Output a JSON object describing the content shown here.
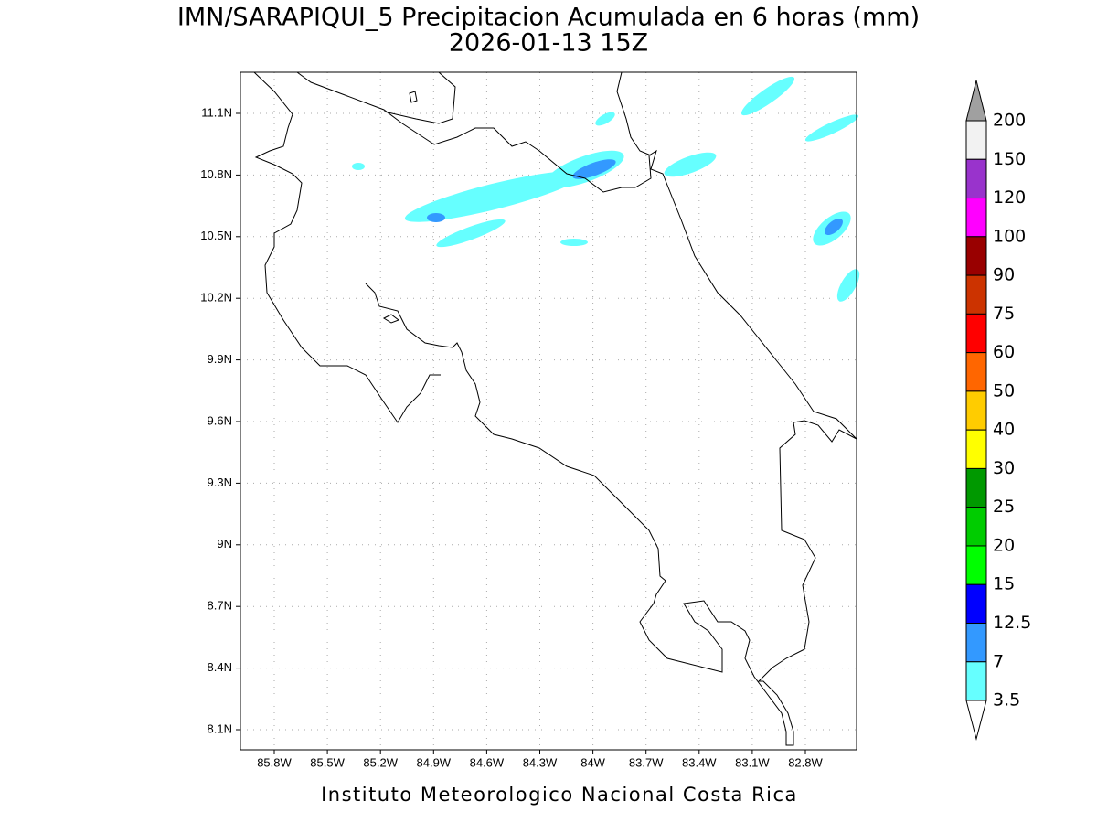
{
  "header": {
    "title": "IMN/SARAPIQUI_5 Precipitacion Acumulada en 6 horas (mm)",
    "subtitle": "2026-01-13 15Z"
  },
  "map": {
    "lat_ticks": [
      "11.1N",
      "10.8N",
      "10.5N",
      "10.2N",
      "9.9N",
      "9.6N",
      "9.3N",
      "9N",
      "8.7N",
      "8.4N",
      "8.1N"
    ],
    "lon_ticks": [
      "85.8W",
      "85.5W",
      "85.2W",
      "84.9W",
      "84.6W",
      "84.3W",
      "84W",
      "83.7W",
      "83.4W",
      "83.1W",
      "82.8W"
    ]
  },
  "colorbar": {
    "labels": [
      "200",
      "150",
      "120",
      "100",
      "90",
      "75",
      "60",
      "50",
      "40",
      "30",
      "25",
      "20",
      "15",
      "12.5",
      "7",
      "3.5"
    ],
    "colors": [
      "#f2f2f2",
      "#9933cc",
      "#ff00ff",
      "#990000",
      "#cc3300",
      "#ff0000",
      "#ff6600",
      "#ffcc00",
      "#ffff00",
      "#009900",
      "#00cc00",
      "#00ff00",
      "#0000ff",
      "#3399ff",
      "#66ffff"
    ],
    "over_color": "#a0a0a0",
    "under_color": "#ffffff"
  },
  "footer": "Instituto Meteorologico Nacional Costa Rica"
}
